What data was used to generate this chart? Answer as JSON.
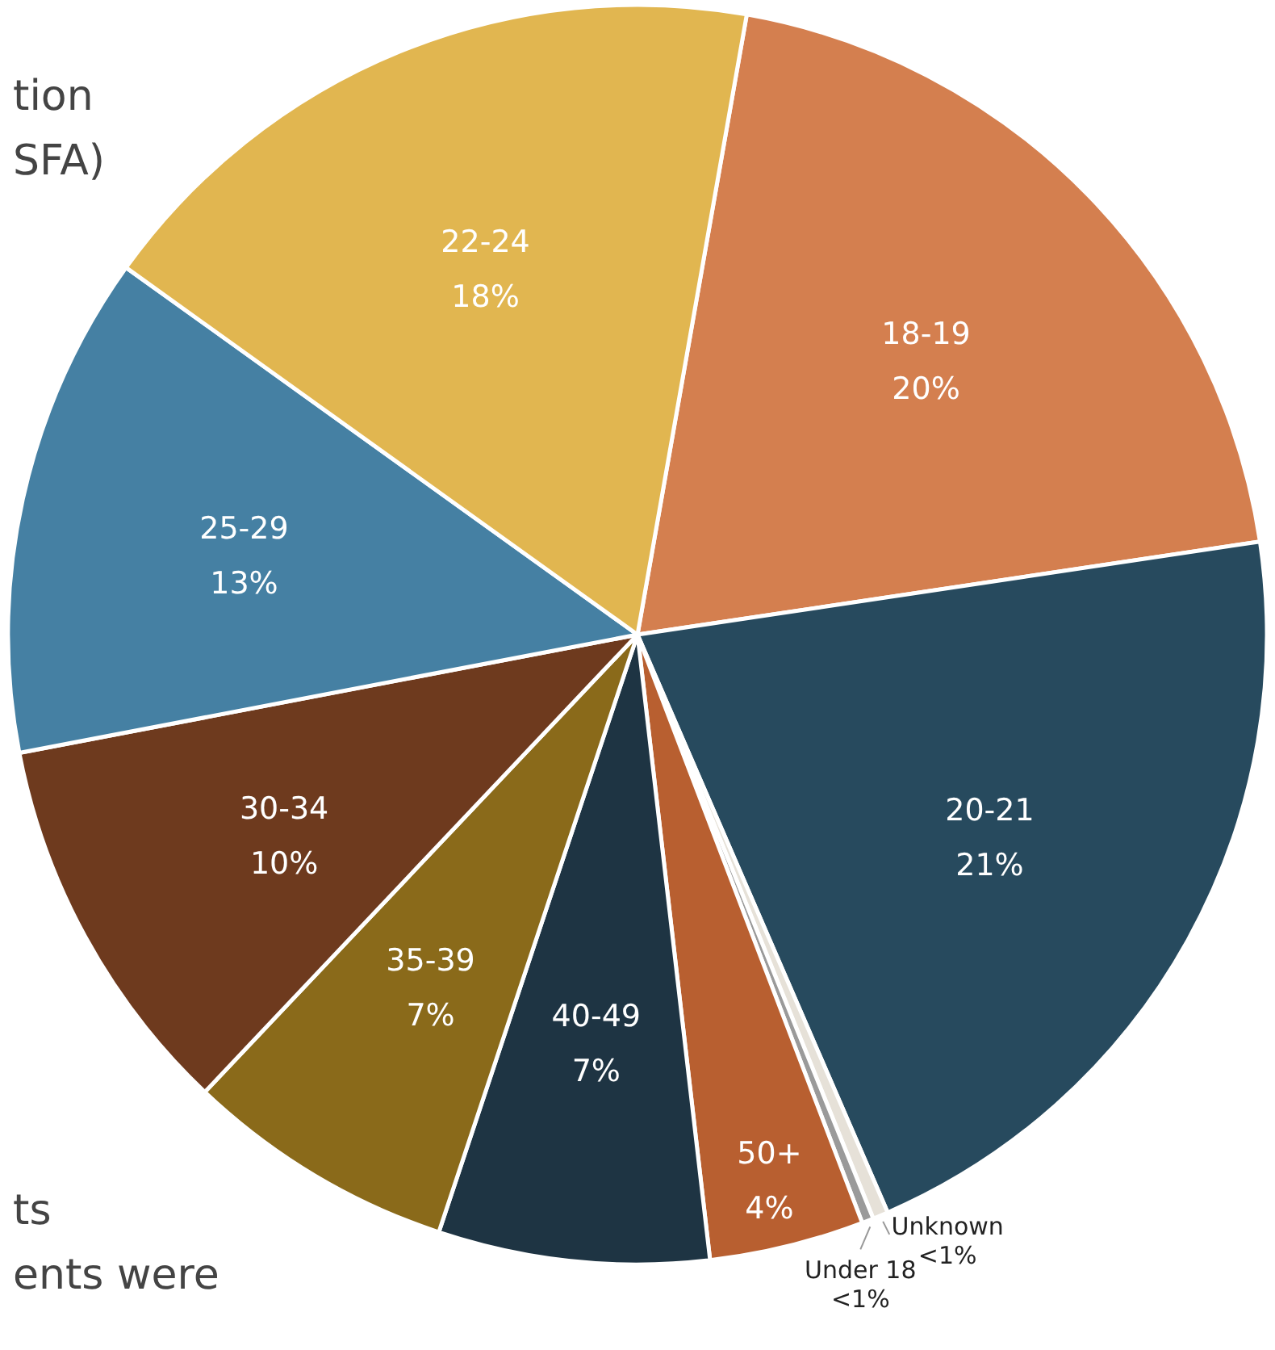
{
  "chart_data": {
    "type": "pie",
    "categories": [
      "18-19",
      "20-21",
      "Unknown",
      "Under 18",
      "50+",
      "40-49",
      "35-39",
      "30-34",
      "25-29",
      "22-24"
    ],
    "values": [
      20,
      21,
      0.4,
      0.3,
      4,
      7,
      7,
      10,
      13,
      18
    ],
    "value_labels": [
      "20%",
      "21%",
      "<1%",
      "<1%",
      "4%",
      "7%",
      "7%",
      "10%",
      "13%",
      "18%"
    ],
    "colors": [
      "#d47f4f",
      "#274a5e",
      "#e6e1d8",
      "#9a9a9a",
      "#b85f30",
      "#1e3443",
      "#8a6a1a",
      "#6e3a1e",
      "#4580a3",
      "#e1b650"
    ],
    "annotations": [
      "tion",
      "SFA)",
      "ts",
      "ents were"
    ]
  }
}
